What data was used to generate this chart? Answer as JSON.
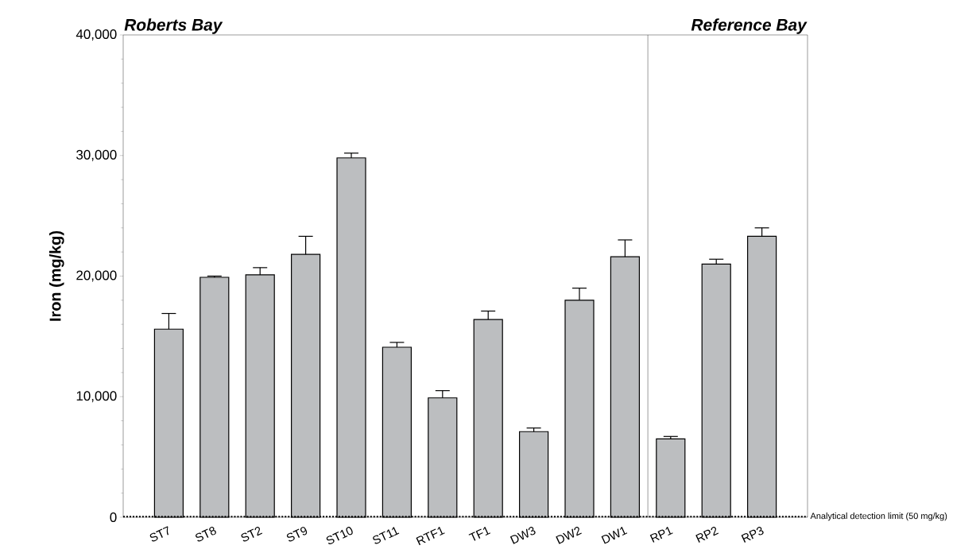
{
  "chart_data": {
    "type": "bar",
    "ylabel": "Iron (mg/kg)",
    "categories": [
      "ST7",
      "ST8",
      "ST2",
      "ST9",
      "ST10",
      "ST11",
      "RTF1",
      "TF1",
      "DW3",
      "DW2",
      "DW1",
      "RP1",
      "RP2",
      "RP3"
    ],
    "values": [
      15600,
      19900,
      20100,
      21800,
      29800,
      14100,
      9900,
      16400,
      7100,
      18000,
      21600,
      6500,
      21000,
      23300
    ],
    "errors": [
      [
        15600,
        16900
      ],
      [
        19900,
        20000
      ],
      [
        20100,
        20700
      ],
      [
        21800,
        23300
      ],
      [
        29800,
        30200
      ],
      [
        14100,
        14500
      ],
      [
        9900,
        10500
      ],
      [
        16400,
        17100
      ],
      [
        7100,
        7400
      ],
      [
        18000,
        19000
      ],
      [
        21600,
        23000
      ],
      [
        6500,
        6700
      ],
      [
        21000,
        21400
      ],
      [
        23300,
        24000
      ]
    ],
    "color": "#bcbec0",
    "ylim": [
      0,
      40000
    ],
    "yticks": [
      0,
      {
        "value": 10000,
        "label": "10,000"
      },
      {
        "value": 20000,
        "label": "20,000"
      },
      {
        "value": 30000,
        "label": "30,000"
      },
      {
        "value": 40000,
        "label": "40,000"
      }
    ],
    "ref_lines": [
      {
        "axis": "y",
        "value": 50,
        "label": "Analytical detection limit (50 mg/kg)",
        "line_style": "dotted"
      }
    ],
    "annotations": [
      "Roberts Bay",
      "Reference Bay"
    ],
    "grid": false
  }
}
